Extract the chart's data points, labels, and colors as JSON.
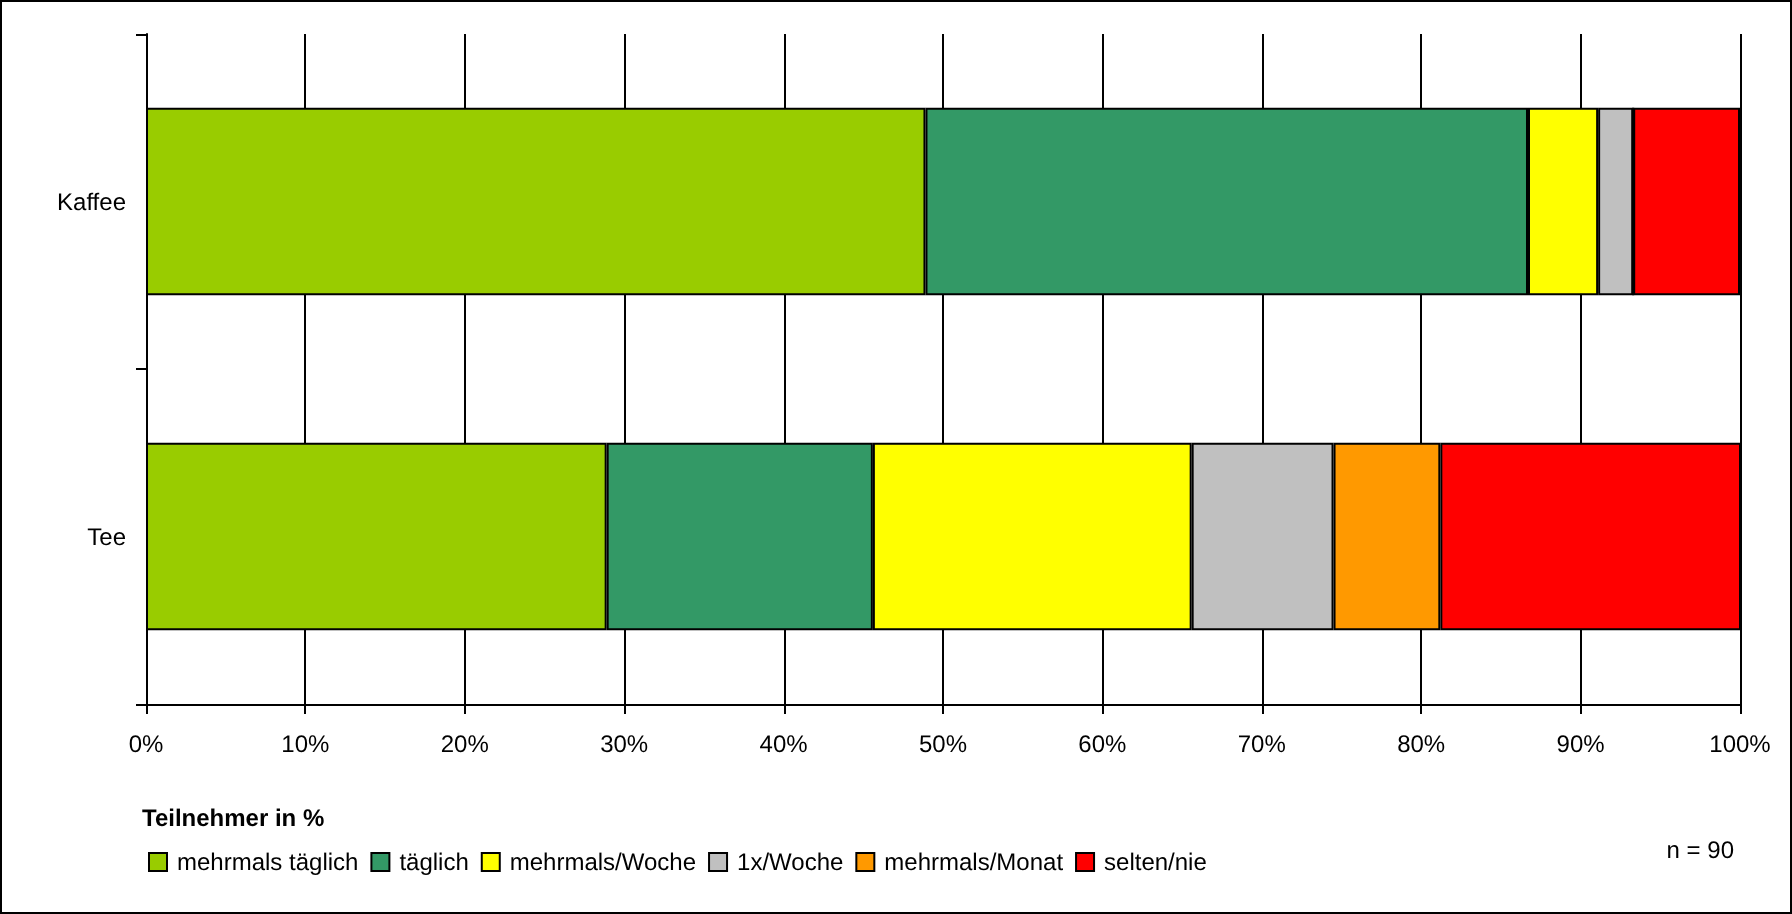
{
  "chart_data": {
    "type": "bar",
    "orientation": "horizontal",
    "stacked": true,
    "xlabel": "Teilnehmer in %",
    "categories": [
      "Kaffee",
      "Tee"
    ],
    "series": [
      {
        "name": "mehrmals täglich",
        "color": "#99cc00",
        "values": [
          48.9,
          28.9
        ]
      },
      {
        "name": "täglich",
        "color": "#339966",
        "values": [
          37.8,
          16.7
        ]
      },
      {
        "name": "mehrmals/Woche",
        "color": "#ffff00",
        "values": [
          4.4,
          20.0
        ]
      },
      {
        "name": "1x/Woche",
        "color": "#c0c0c0",
        "values": [
          2.2,
          8.9
        ]
      },
      {
        "name": "mehrmals/Monat",
        "color": "#ff9900",
        "values": [
          0,
          6.7
        ]
      },
      {
        "name": "selten/nie",
        "color": "#ff0000",
        "values": [
          6.7,
          18.9
        ]
      }
    ],
    "xlim": [
      0,
      100
    ],
    "xticks": [
      {
        "value": 0,
        "label": "0%"
      },
      {
        "value": 10,
        "label": "10%"
      },
      {
        "value": 20,
        "label": "20%"
      },
      {
        "value": 30,
        "label": "30%"
      },
      {
        "value": 40,
        "label": "40%"
      },
      {
        "value": 50,
        "label": "50%"
      },
      {
        "value": 60,
        "label": "60%"
      },
      {
        "value": 70,
        "label": "70%"
      },
      {
        "value": 80,
        "label": "80%"
      },
      {
        "value": 90,
        "label": "90%"
      },
      {
        "value": 100,
        "label": "100%"
      }
    ],
    "grid": "x",
    "legend": "bottom",
    "annotations": [
      "n = 90"
    ]
  }
}
